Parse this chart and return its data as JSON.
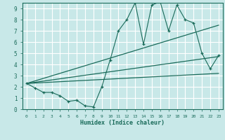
{
  "title": "",
  "xlabel": "Humidex (Indice chaleur)",
  "ylabel": "",
  "bg_color": "#c8e8e8",
  "grid_color": "#ffffff",
  "line_color": "#1a6b5a",
  "xlim": [
    -0.5,
    23.5
  ],
  "ylim": [
    0,
    9.5
  ],
  "xticks": [
    0,
    1,
    2,
    3,
    4,
    5,
    6,
    7,
    8,
    9,
    10,
    11,
    12,
    13,
    14,
    15,
    16,
    17,
    18,
    19,
    20,
    21,
    22,
    23
  ],
  "yticks": [
    0,
    1,
    2,
    3,
    4,
    5,
    6,
    7,
    8,
    9
  ],
  "scatter_x": [
    0,
    1,
    2,
    3,
    4,
    5,
    6,
    7,
    8,
    9,
    10,
    11,
    12,
    13,
    14,
    15,
    16,
    17,
    18,
    19,
    20,
    21,
    22,
    23
  ],
  "scatter_y": [
    2.3,
    1.9,
    1.5,
    1.5,
    1.2,
    0.7,
    0.8,
    0.3,
    0.2,
    2.0,
    4.4,
    7.0,
    8.0,
    9.5,
    5.8,
    9.3,
    9.6,
    7.0,
    9.3,
    8.0,
    7.7,
    5.0,
    3.6,
    4.8
  ],
  "line1_x": [
    0,
    23
  ],
  "line1_y": [
    2.3,
    7.5
  ],
  "line2_x": [
    0,
    23
  ],
  "line2_y": [
    2.3,
    4.7
  ],
  "line3_x": [
    0,
    23
  ],
  "line3_y": [
    2.3,
    3.2
  ]
}
